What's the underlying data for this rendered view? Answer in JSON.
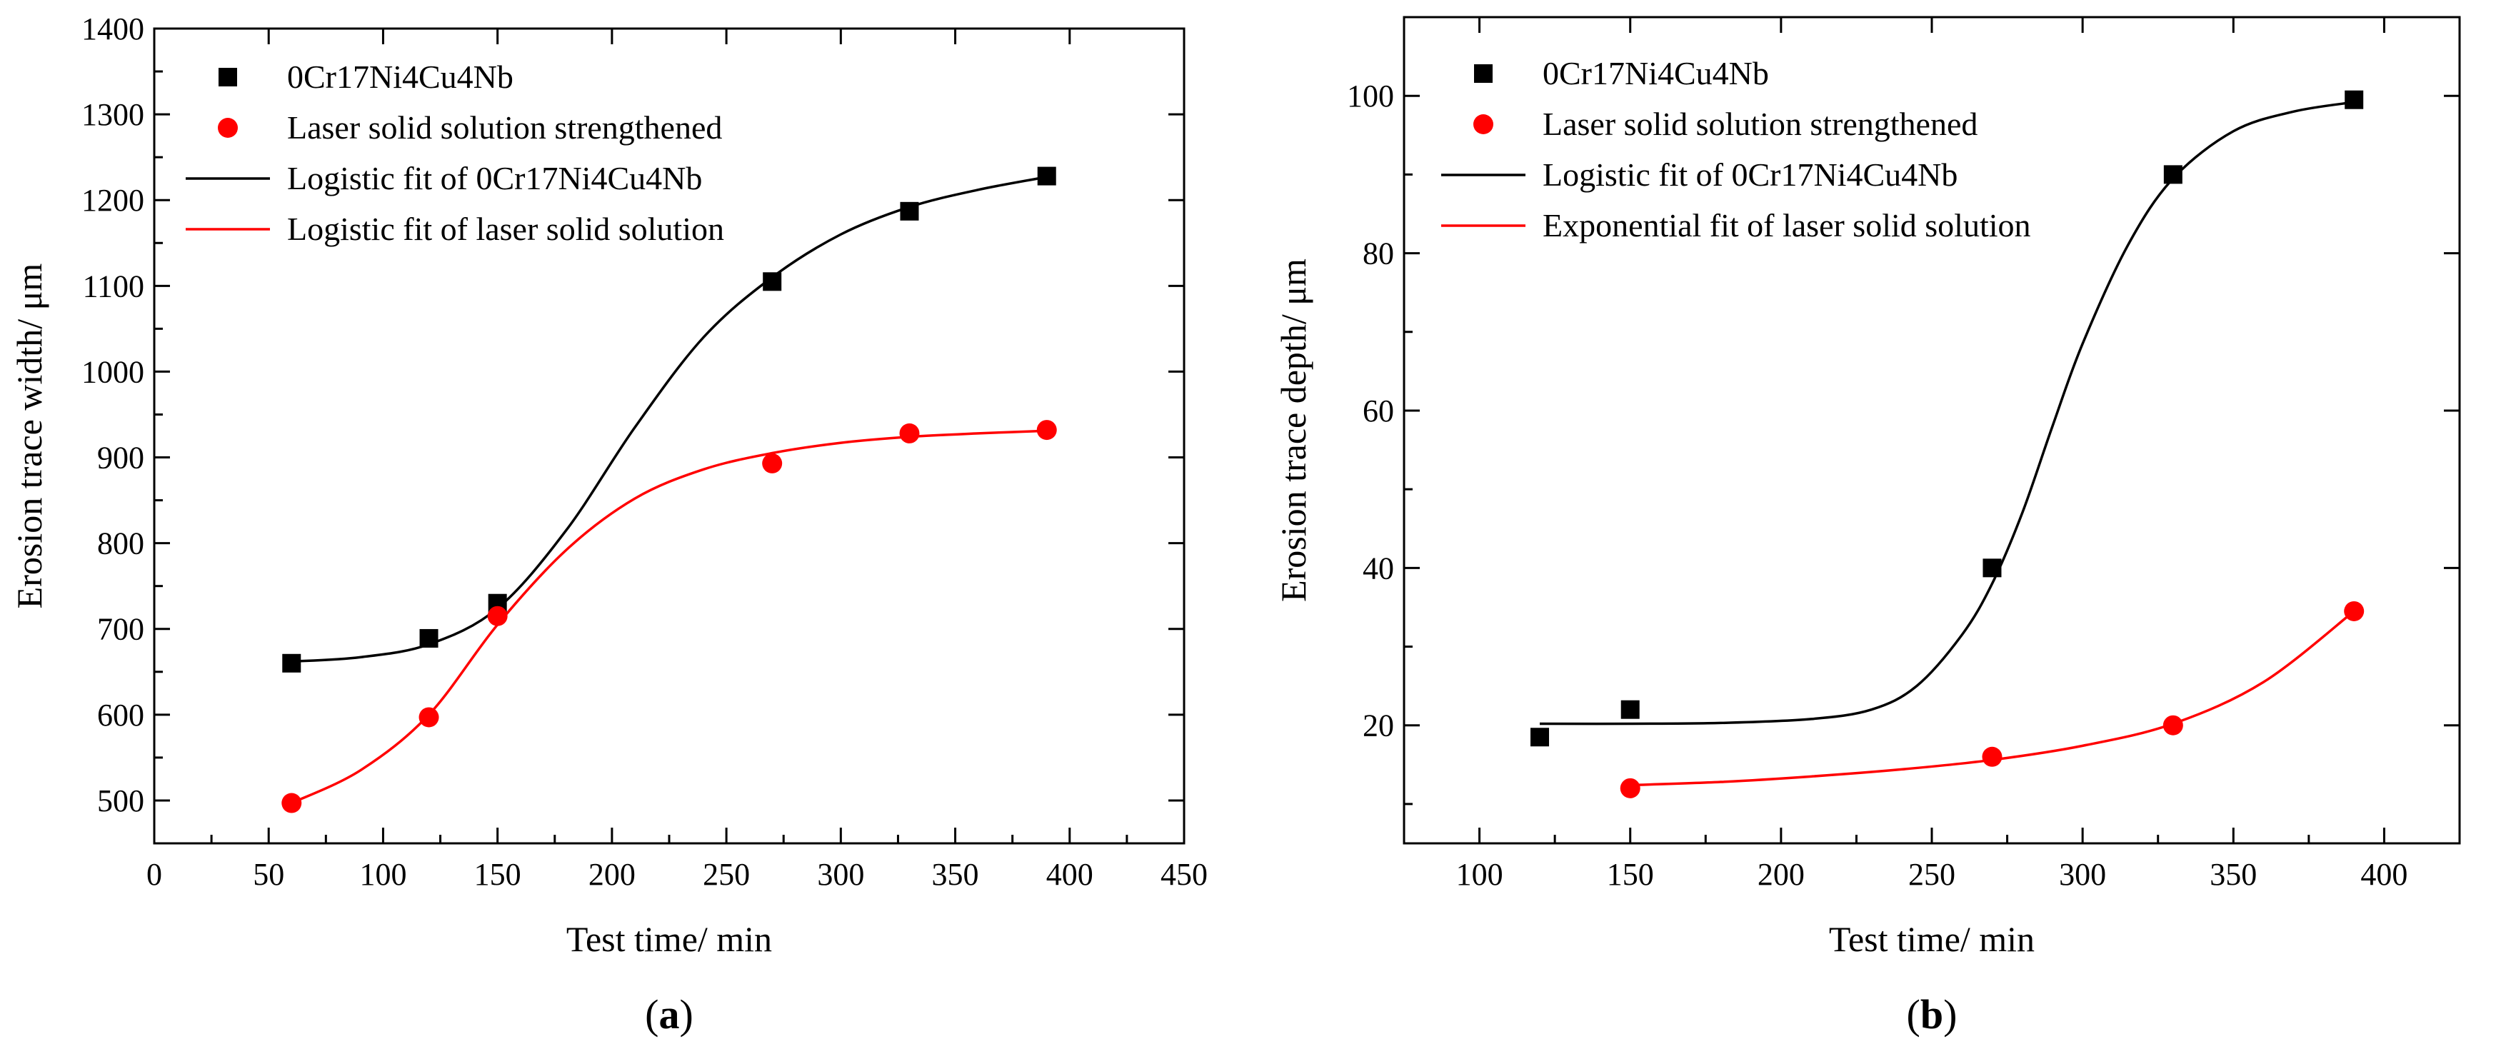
{
  "colors": {
    "black_series": "#000000",
    "red_series": "#ff0000"
  },
  "chart_data": [
    {
      "id": "a",
      "type": "scatter",
      "panel_label": "a",
      "xlabel": "Test time/ min",
      "ylabel": "Erosion trace width/ μm",
      "xlim": [
        0,
        450
      ],
      "ylim": [
        450,
        1400
      ],
      "xticks": [
        0,
        50,
        100,
        150,
        200,
        250,
        300,
        350,
        400,
        450
      ],
      "yticks": [
        500,
        600,
        700,
        800,
        900,
        1000,
        1100,
        1200,
        1300,
        1400
      ],
      "legend_position": "top-left",
      "series": [
        {
          "name": "0Cr17Ni4Cu4Nb",
          "kind": "points",
          "marker": "square",
          "color": "#000000",
          "x": [
            60,
            120,
            150,
            270,
            330,
            390
          ],
          "y": [
            660,
            689,
            730,
            1105,
            1187,
            1228
          ]
        },
        {
          "name": "Laser solid solution strengthened",
          "kind": "points",
          "marker": "circle",
          "color": "#ff0000",
          "x": [
            60,
            120,
            150,
            270,
            330,
            390
          ],
          "y": [
            497,
            597,
            715,
            893,
            928,
            932
          ]
        },
        {
          "name": "Logistic fit of 0Cr17Ni4Cu4Nb",
          "kind": "line",
          "color": "#000000",
          "x": [
            60,
            90,
            120,
            150,
            180,
            210,
            240,
            270,
            300,
            330,
            360,
            390
          ],
          "y": [
            662,
            667,
            682,
            724,
            815,
            935,
            1040,
            1110,
            1160,
            1192,
            1212,
            1227
          ]
        },
        {
          "name": "Logistic fit of laser solid solution",
          "kind": "line",
          "color": "#ff0000",
          "x": [
            60,
            90,
            120,
            150,
            180,
            210,
            240,
            270,
            300,
            330,
            360,
            390
          ],
          "y": [
            497,
            535,
            600,
            705,
            792,
            852,
            886,
            905,
            917,
            924,
            928,
            931
          ]
        }
      ]
    },
    {
      "id": "b",
      "type": "scatter",
      "panel_label": "b",
      "xlabel": "Test time/ min",
      "ylabel": "Erosion trace depth/ μm",
      "xlim": [
        75,
        425
      ],
      "ylim": [
        5,
        110
      ],
      "xticks": [
        100,
        150,
        200,
        250,
        300,
        350,
        400
      ],
      "yticks": [
        20,
        40,
        60,
        80,
        100
      ],
      "legend_position": "top-left",
      "series": [
        {
          "name": "0Cr17Ni4Cu4Nb",
          "kind": "points",
          "marker": "square",
          "color": "#000000",
          "x": [
            120,
            150,
            270,
            330,
            390
          ],
          "y": [
            18.5,
            22,
            40,
            90,
            99.5
          ]
        },
        {
          "name": "Laser solid solution strengthened",
          "kind": "points",
          "marker": "circle",
          "color": "#ff0000",
          "x": [
            150,
            270,
            330,
            390
          ],
          "y": [
            12,
            16,
            20,
            34.5
          ]
        },
        {
          "name": "Logistic fit of 0Cr17Ni4Cu4Nb",
          "kind": "line",
          "color": "#000000",
          "x": [
            120,
            150,
            180,
            210,
            230,
            245,
            260,
            270,
            280,
            290,
            300,
            315,
            330,
            350,
            370,
            390
          ],
          "y": [
            20.2,
            20.2,
            20.3,
            20.8,
            22,
            25,
            31.5,
            38,
            47,
            58,
            68.5,
            81,
            89.5,
            95.5,
            98,
            99.2
          ]
        },
        {
          "name": "Exponential fit of laser solid solution",
          "kind": "line",
          "color": "#ff0000",
          "x": [
            150,
            180,
            210,
            240,
            270,
            300,
            330,
            360,
            390
          ],
          "y": [
            12.4,
            12.8,
            13.5,
            14.4,
            15.6,
            17.4,
            20.2,
            25.5,
            34.5
          ]
        }
      ]
    }
  ]
}
